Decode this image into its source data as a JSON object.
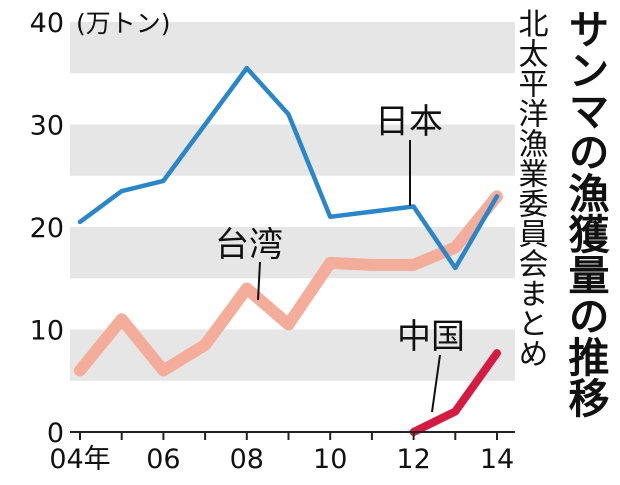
{
  "chart_data": {
    "type": "line",
    "title": "サンマの漁獲量の推移",
    "source": "北太平洋漁業委員会まとめ",
    "unit": "(万トン)",
    "ylim": [
      0,
      40
    ],
    "yticks": [
      0,
      10,
      20,
      30,
      40
    ],
    "xlim": [
      2004,
      2014
    ],
    "xticks": [
      {
        "year": 2004,
        "label": "04年"
      },
      {
        "year": 2006,
        "label": "06"
      },
      {
        "year": 2008,
        "label": "08"
      },
      {
        "year": 2010,
        "label": "10"
      },
      {
        "year": 2012,
        "label": "12"
      },
      {
        "year": 2014,
        "label": "14"
      }
    ],
    "grid": "alternating horizontal bands",
    "series": [
      {
        "name": "日本",
        "color": "#2a86c8",
        "x": [
          2004,
          2005,
          2006,
          2007,
          2008,
          2009,
          2010,
          2011,
          2012,
          2013,
          2014
        ],
        "values": [
          20.5,
          23.5,
          24.5,
          30.0,
          35.5,
          31.0,
          21.0,
          21.5,
          22.0,
          16.0,
          23.0
        ]
      },
      {
        "name": "台湾",
        "color": "#f3ad9a",
        "x": [
          2004,
          2005,
          2006,
          2007,
          2008,
          2009,
          2010,
          2011,
          2012,
          2013,
          2014
        ],
        "values": [
          6.0,
          11.0,
          6.0,
          8.5,
          14.0,
          10.5,
          16.5,
          16.3,
          16.3,
          18.0,
          23.0
        ]
      },
      {
        "name": "中国",
        "color": "#d41c42",
        "x": [
          2012,
          2013,
          2014
        ],
        "values": [
          0.0,
          2.0,
          7.7
        ]
      }
    ]
  }
}
